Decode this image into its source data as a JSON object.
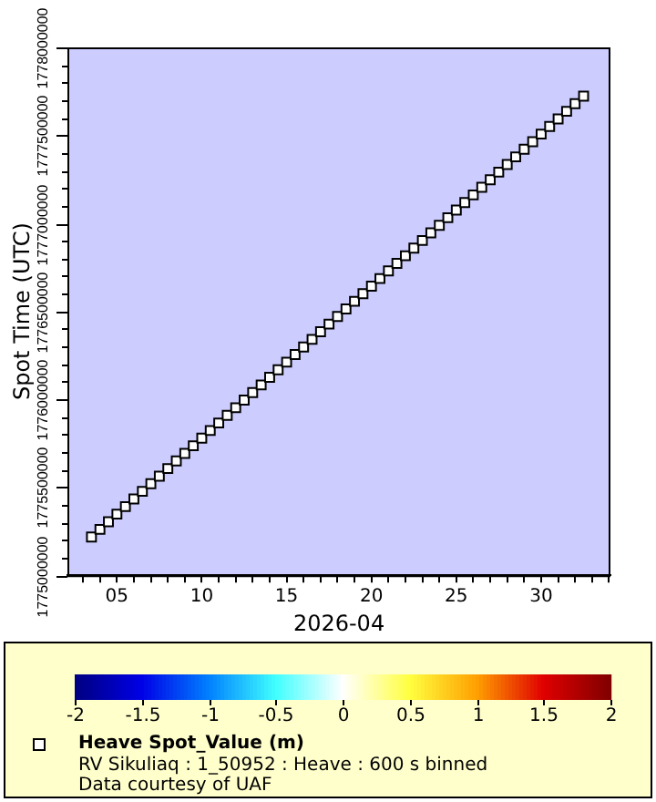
{
  "chart_data": {
    "type": "scatter",
    "xlabel": "2026-04",
    "ylabel": "Spot Time (UTC)",
    "x": [
      "2026-04-03T12:00",
      "2026-04-04",
      "2026-04-04T12:00",
      "2026-04-05",
      "2026-04-05T12:00",
      "2026-04-06",
      "2026-04-06T12:00",
      "2026-04-07",
      "2026-04-07T12:00",
      "2026-04-08",
      "2026-04-08T12:00",
      "2026-04-09",
      "2026-04-09T12:00",
      "2026-04-10",
      "2026-04-10T12:00",
      "2026-04-11",
      "2026-04-11T12:00",
      "2026-04-12",
      "2026-04-12T12:00",
      "2026-04-13",
      "2026-04-13T12:00",
      "2026-04-14",
      "2026-04-14T12:00",
      "2026-04-15",
      "2026-04-15T12:00",
      "2026-04-16",
      "2026-04-16T12:00",
      "2026-04-17",
      "2026-04-17T12:00",
      "2026-04-18",
      "2026-04-18T12:00",
      "2026-04-19",
      "2026-04-19T12:00",
      "2026-04-20",
      "2026-04-20T12:00",
      "2026-04-21",
      "2026-04-21T12:00",
      "2026-04-22",
      "2026-04-22T12:00",
      "2026-04-23",
      "2026-04-23T12:00",
      "2026-04-24",
      "2026-04-24T12:00",
      "2026-04-25",
      "2026-04-25T12:00",
      "2026-04-26",
      "2026-04-26T12:00",
      "2026-04-27",
      "2026-04-27T12:00",
      "2026-04-28",
      "2026-04-28T12:00",
      "2026-04-29",
      "2026-04-29T12:00",
      "2026-04-30",
      "2026-04-30T12:00",
      "2026-05-01",
      "2026-05-01T12:00",
      "2026-05-02",
      "2026-05-02T12:00"
    ],
    "series": [
      {
        "name": "Heave Spot_Value (m)",
        "color": "#000000",
        "values": [
          1775217600,
          1775260800,
          1775304000,
          1775347200,
          1775390400,
          1775433600,
          1775476800,
          1775520000,
          1775563200,
          1775606400,
          1775649600,
          1775692800,
          1775736000,
          1775779200,
          1775822400,
          1775865600,
          1775908800,
          1775952000,
          1775995200,
          1776038400,
          1776081600,
          1776124800,
          1776168000,
          1776211200,
          1776254400,
          1776297600,
          1776340800,
          1776384000,
          1776427200,
          1776470400,
          1776513600,
          1776556800,
          1776600000,
          1776643200,
          1776686400,
          1776729600,
          1776772800,
          1776816000,
          1776859200,
          1776902400,
          1776945600,
          1776988800,
          1777032000,
          1777075200,
          1777118400,
          1777161600,
          1777204800,
          1777248000,
          1777291200,
          1777334400,
          1777377600,
          1777420800,
          1777464000,
          1777507200,
          1777550400,
          1777593600,
          1777636800,
          1777680000,
          1777723200
        ],
        "cvalues": [
          0,
          0,
          0,
          0,
          0,
          0,
          0,
          0,
          0,
          0,
          0,
          0,
          0,
          0,
          0,
          0,
          0,
          0,
          0,
          0,
          0,
          0,
          0,
          0,
          0,
          0,
          0,
          0,
          0,
          0,
          0,
          0,
          0,
          0,
          0,
          0,
          0,
          0,
          0,
          0,
          0,
          0,
          0,
          0,
          0,
          0,
          0,
          0,
          0,
          0,
          0,
          0,
          0,
          0,
          0,
          0,
          0,
          0,
          0
        ]
      }
    ],
    "xlim": [
      "2026-04-02T02:00",
      "2026-05-04T02:00"
    ],
    "xticks": [
      {
        "value": "2026-04-03",
        "label": null
      },
      {
        "value": "2026-04-04",
        "label": null
      },
      {
        "value": "2026-04-05",
        "label": "05"
      },
      {
        "value": "2026-04-06",
        "label": null
      },
      {
        "value": "2026-04-07",
        "label": null
      },
      {
        "value": "2026-04-08",
        "label": null
      },
      {
        "value": "2026-04-09",
        "label": null
      },
      {
        "value": "2026-04-10",
        "label": "10"
      },
      {
        "value": "2026-04-11",
        "label": null
      },
      {
        "value": "2026-04-12",
        "label": null
      },
      {
        "value": "2026-04-13",
        "label": null
      },
      {
        "value": "2026-04-14",
        "label": null
      },
      {
        "value": "2026-04-15",
        "label": "15"
      },
      {
        "value": "2026-04-16",
        "label": null
      },
      {
        "value": "2026-04-17",
        "label": null
      },
      {
        "value": "2026-04-18",
        "label": null
      },
      {
        "value": "2026-04-19",
        "label": null
      },
      {
        "value": "2026-04-20",
        "label": "20"
      },
      {
        "value": "2026-04-21",
        "label": null
      },
      {
        "value": "2026-04-22",
        "label": null
      },
      {
        "value": "2026-04-23",
        "label": null
      },
      {
        "value": "2026-04-24",
        "label": null
      },
      {
        "value": "2026-04-25",
        "label": "25"
      },
      {
        "value": "2026-04-26",
        "label": null
      },
      {
        "value": "2026-04-27",
        "label": null
      },
      {
        "value": "2026-04-28",
        "label": null
      },
      {
        "value": "2026-04-29",
        "label": null
      },
      {
        "value": "2026-04-30",
        "label": "30"
      },
      {
        "value": "2026-05-01",
        "label": null
      },
      {
        "value": "2026-05-02",
        "label": null
      },
      {
        "value": "2026-05-03",
        "label": null
      },
      {
        "value": "2026-05-04",
        "label": null
      }
    ],
    "ylim": [
      1775000000,
      1778000000
    ],
    "yticks": [
      1775000000,
      {
        "value": 1775100000,
        "label": null
      },
      {
        "value": 1775200000,
        "label": null
      },
      {
        "value": 1775300000,
        "label": null
      },
      {
        "value": 1775400000,
        "label": null
      },
      1775500000,
      {
        "value": 1775600000,
        "label": null
      },
      {
        "value": 1775700000,
        "label": null
      },
      {
        "value": 1775800000,
        "label": null
      },
      {
        "value": 1775900000,
        "label": null
      },
      1776000000,
      {
        "value": 1776100000,
        "label": null
      },
      {
        "value": 1776200000,
        "label": null
      },
      {
        "value": 1776300000,
        "label": null
      },
      {
        "value": 1776400000,
        "label": null
      },
      1776500000,
      {
        "value": 1776600000,
        "label": null
      },
      {
        "value": 1776700000,
        "label": null
      },
      {
        "value": 1776800000,
        "label": null
      },
      {
        "value": 1776900000,
        "label": null
      },
      1777000000,
      {
        "value": 1777100000,
        "label": null
      },
      {
        "value": 1777200000,
        "label": null
      },
      {
        "value": 1777300000,
        "label": null
      },
      {
        "value": 1777400000,
        "label": null
      },
      1777500000,
      {
        "value": 1777600000,
        "label": null
      },
      {
        "value": 1777700000,
        "label": null
      },
      {
        "value": 1777800000,
        "label": null
      },
      {
        "value": 1777900000,
        "label": null
      },
      1778000000
    ],
    "clim": [
      -2,
      2
    ],
    "cticks": [
      -2,
      -1.5,
      -1,
      -0.5,
      0,
      0.5,
      1,
      1.5,
      2
    ],
    "legend": "bottom",
    "marker": "square",
    "annotations": [
      "RV Sikuliaq : 1_50952 : Heave : 600 s binned",
      "Data courtesy of UAF"
    ]
  }
}
